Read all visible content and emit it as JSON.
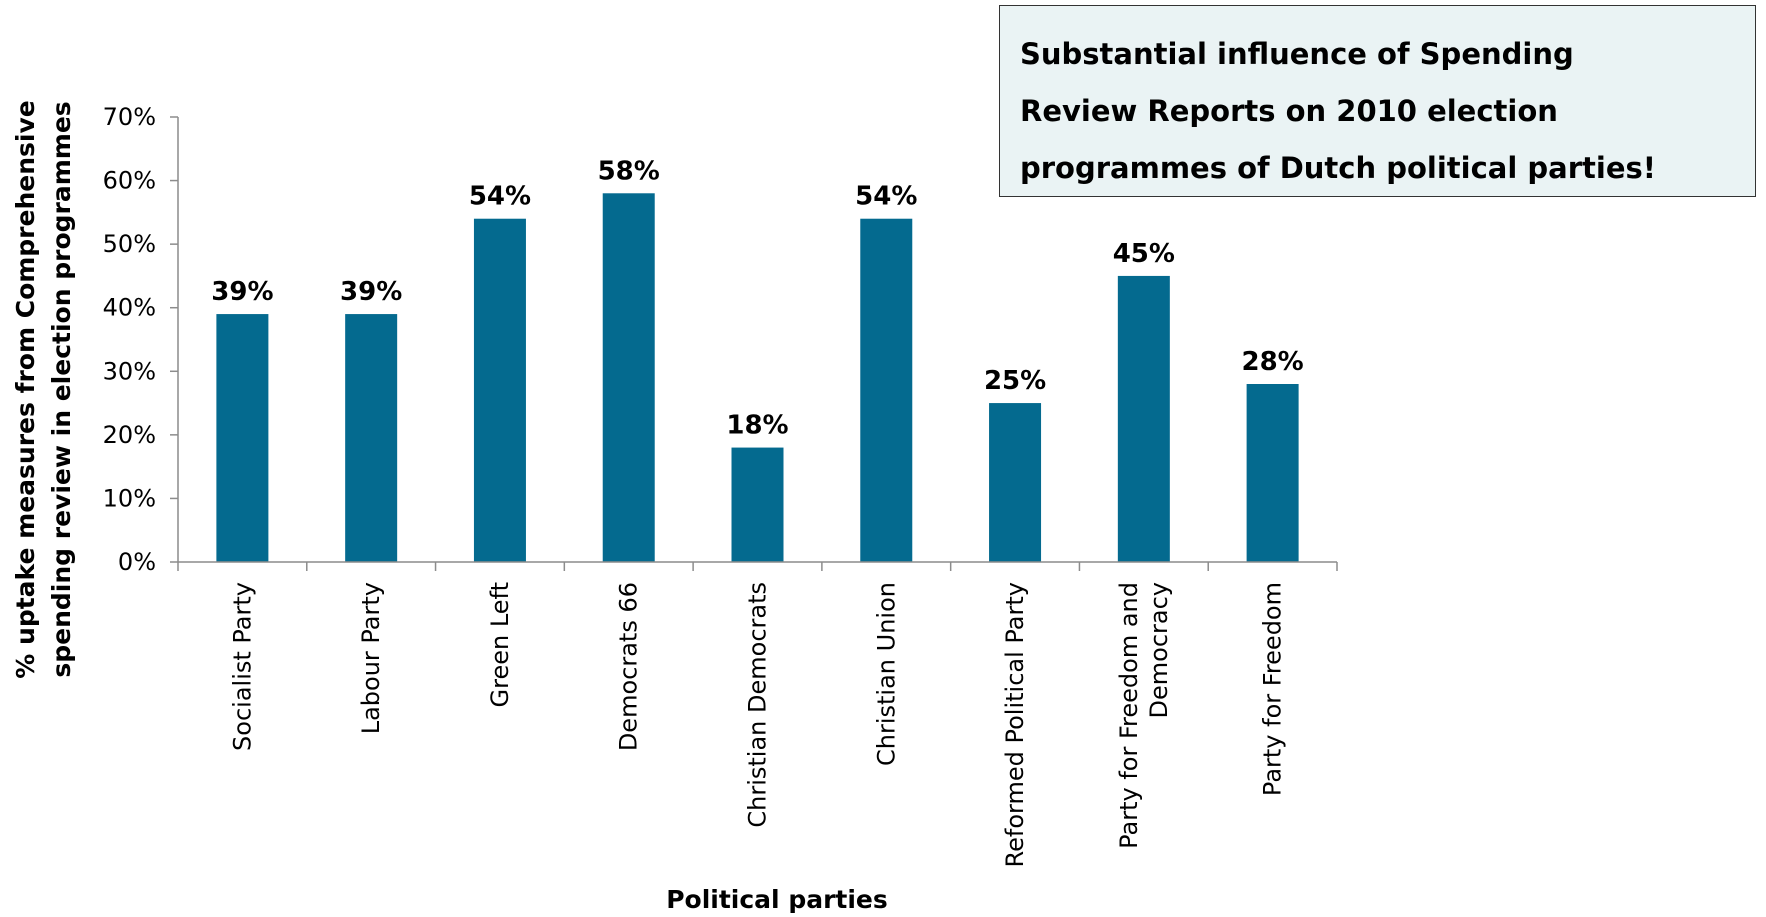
{
  "callout": {
    "lines": [
      "Substantial influence of Spending",
      "Review Reports on 2010 election",
      "programmes of Dutch political parties!"
    ]
  },
  "chart_data": {
    "type": "bar",
    "title": "",
    "xlabel": "Political parties",
    "ylabel": [
      "% uptake measures from Comprehensive",
      "spending review in election programmes"
    ],
    "categories": [
      [
        "Socialist Party"
      ],
      [
        "Labour Party"
      ],
      [
        "Green Left"
      ],
      [
        "Democrats 66"
      ],
      [
        "Christian Democrats"
      ],
      [
        "Christian Union"
      ],
      [
        "Reformed Political Party"
      ],
      [
        "Party for Freedom and",
        "Democracy"
      ],
      [
        "Party for Freedom"
      ]
    ],
    "values": [
      39,
      39,
      54,
      58,
      18,
      54,
      25,
      45,
      28
    ],
    "data_labels": [
      "39%",
      "39%",
      "54%",
      "58%",
      "18%",
      "54%",
      "25%",
      "45%",
      "28%"
    ],
    "y_ticks": [
      "0%",
      "10%",
      "20%",
      "30%",
      "40%",
      "50%",
      "60%",
      "70%"
    ],
    "ylim": [
      0,
      70
    ],
    "grid": false,
    "legend": false,
    "bar_color": "#046a8f"
  }
}
